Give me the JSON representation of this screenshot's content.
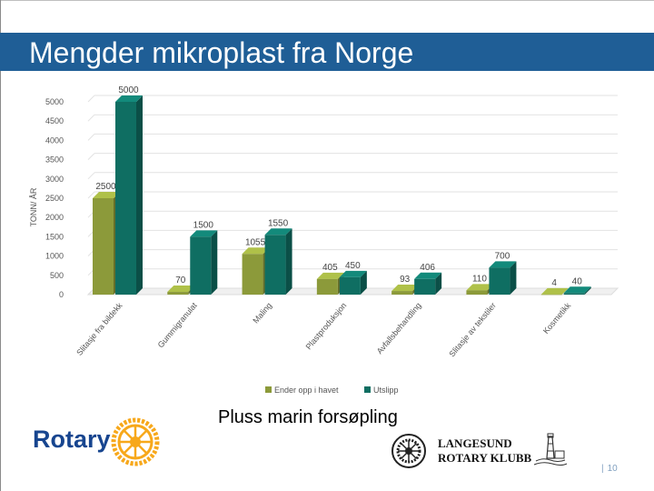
{
  "slide": {
    "title": "Mengder mikroplast fra Norge",
    "subtitle": "Pluss marin forsøpling",
    "page_number": "10"
  },
  "logos": {
    "rotary_word": "Rotary",
    "club_line1": "LANGESUND",
    "club_line2": "ROTARY KLUBB"
  },
  "colors": {
    "title_bar": "#1f5e96",
    "series_1": "#8c9a3a",
    "series_2": "#0f6e62",
    "rotary_blue": "#17458f",
    "rotary_gold": "#f7a81b"
  },
  "chart_data": {
    "type": "bar",
    "ylabel": "TONN/ ÅR",
    "ylim": [
      0,
      5000
    ],
    "yticks": [
      0,
      500,
      1000,
      1500,
      2000,
      2500,
      3000,
      3500,
      4000,
      4500,
      5000
    ],
    "categories": [
      "Slitasje fra bildekk",
      "Gummigranulat",
      "Maling",
      "Plastproduksjon",
      "Avfallsbehandling",
      "Slitasje av tekstiler",
      "Kosmetikk"
    ],
    "series": [
      {
        "name": "Ender opp i havet",
        "values": [
          2500,
          70,
          1055,
          405,
          93,
          110,
          4
        ]
      },
      {
        "name": "Utslipp",
        "values": [
          5000,
          1500,
          1550,
          450,
          406,
          700,
          40
        ]
      }
    ],
    "legend_position": "bottom",
    "grid": true
  }
}
